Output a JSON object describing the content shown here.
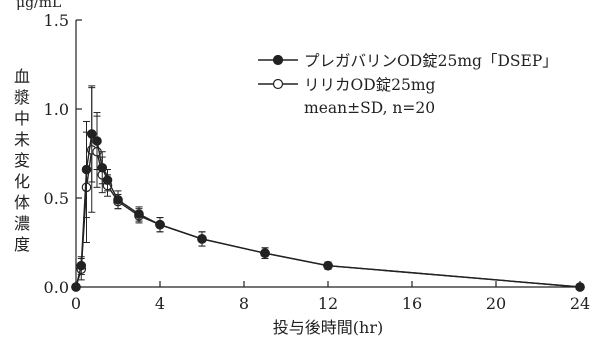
{
  "chart_data": {
    "type": "line",
    "title": "",
    "xlabel": "投与後時間(hr)",
    "ylabel": "血漿中未変化体濃度",
    "yunit": "μg/mL",
    "xlim": [
      0,
      24
    ],
    "ylim": [
      0,
      1.5
    ],
    "xticks": [
      0,
      4,
      8,
      12,
      16,
      20,
      24
    ],
    "yticks": [
      0.0,
      0.5,
      1.0,
      1.5
    ],
    "xtick_labels": [
      "0",
      "4",
      "8",
      "12",
      "16",
      "20",
      "24"
    ],
    "ytick_labels": [
      "0.0",
      "0.5",
      "1.0",
      "1.5"
    ],
    "grid": false,
    "legend_position": "top-right",
    "legend_note": "mean±SD, n=20",
    "series": [
      {
        "name": "プレガバリンOD錠25mg「DSEP」",
        "marker": "filled-circle",
        "x": [
          0,
          0.25,
          0.5,
          0.75,
          1,
          1.25,
          1.5,
          2,
          3,
          4,
          6,
          9,
          12,
          24
        ],
        "y": [
          0.0,
          0.12,
          0.66,
          0.86,
          0.82,
          0.67,
          0.6,
          0.49,
          0.41,
          0.35,
          0.27,
          0.19,
          0.12,
          0.0
        ],
        "sd": [
          0.0,
          0.05,
          0.27,
          0.27,
          0.16,
          0.09,
          0.06,
          0.05,
          0.04,
          0.04,
          0.04,
          0.03,
          0.02,
          0.0
        ]
      },
      {
        "name": "リリカOD錠25mg",
        "marker": "open-circle",
        "x": [
          0,
          0.25,
          0.5,
          0.75,
          1,
          1.25,
          1.5,
          2,
          3,
          4,
          6,
          9,
          12,
          24
        ],
        "y": [
          0.0,
          0.1,
          0.56,
          0.77,
          0.76,
          0.63,
          0.57,
          0.48,
          0.4,
          0.35,
          0.27,
          0.19,
          0.12,
          0.0
        ],
        "sd": [
          0.0,
          0.06,
          0.31,
          0.35,
          0.2,
          0.1,
          0.06,
          0.04,
          0.04,
          0.04,
          0.04,
          0.03,
          0.02,
          0.0
        ]
      }
    ]
  }
}
